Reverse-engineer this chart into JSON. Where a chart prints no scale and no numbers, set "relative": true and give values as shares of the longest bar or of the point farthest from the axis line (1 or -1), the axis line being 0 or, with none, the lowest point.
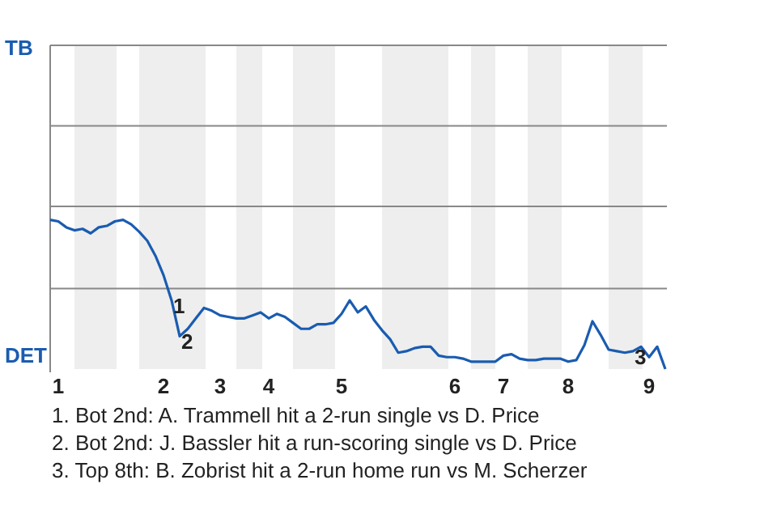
{
  "chart_data": {
    "type": "line",
    "relative": true,
    "categories": [
      null,
      "1",
      null,
      null,
      null,
      null,
      null,
      null,
      null,
      null,
      null,
      null,
      null,
      null,
      "2",
      null,
      null,
      null,
      null,
      null,
      null,
      "3",
      null,
      null,
      null,
      null,
      null,
      "4",
      null,
      null,
      null,
      null,
      null,
      null,
      null,
      null,
      "5",
      null,
      null,
      null,
      null,
      null,
      null,
      null,
      null,
      null,
      null,
      null,
      null,
      null,
      "6",
      null,
      null,
      null,
      null,
      null,
      "7",
      null,
      null,
      null,
      null,
      null,
      null,
      null,
      "8",
      null,
      null,
      null,
      null,
      null,
      null,
      null,
      null,
      null,
      "9",
      null,
      null
    ],
    "marker": "none",
    "line_style": "solid",
    "ref_lines": [
      {
        "axis": "y",
        "value": 0.54,
        "label": null,
        "color": "#888888"
      },
      {
        "axis": "y",
        "value": 1.09,
        "label": null,
        "color": "#888888"
      },
      {
        "axis": "y",
        "value": 1.63,
        "label": null,
        "color": "#888888"
      },
      {
        "axis": "y",
        "value": 2.17,
        "label": null,
        "color": "#888888"
      }
    ],
    "series": [
      {
        "color": "#1a5cb0",
        "values": [
          1,
          0.99,
          0.95,
          0.93,
          0.94,
          0.91,
          0.95,
          0.96,
          0.99,
          1,
          0.97,
          0.92,
          0.86,
          0.76,
          0.63,
          0.46,
          0.22,
          0.27,
          0.34,
          0.41,
          0.39,
          0.36,
          0.35,
          0.34,
          0.34,
          0.36,
          0.38,
          0.34,
          0.37,
          0.35,
          0.31,
          0.27,
          0.27,
          0.3,
          0.3,
          0.31,
          0.37,
          0.46,
          0.38,
          0.42,
          0.33,
          0.26,
          0.2,
          0.11,
          0.12,
          0.14,
          0.15,
          0.15,
          0.09,
          0.08,
          0.08,
          0.07,
          0.05,
          0.05,
          0.05,
          0.05,
          0.09,
          0.1,
          0.07,
          0.06,
          0.06,
          0.07,
          0.07,
          0.07,
          0.05,
          0.06,
          0.16,
          0.32,
          0.23,
          0.13,
          0.12,
          0.11,
          0.12,
          0.15,
          0.08,
          0.15,
          0
        ]
      }
    ],
    "annotations": [
      "TB",
      "DET",
      "1. Bot 2nd: A. Trammell hit a 2-run single vs D. Price",
      "2. Bot 2nd: J. Bassler hit a run-scoring single vs D. Price",
      "3. Top 8th: B. Zobrist hit a 2-run home run vs M. Scherzer",
      "1",
      "2",
      "3"
    ]
  }
}
